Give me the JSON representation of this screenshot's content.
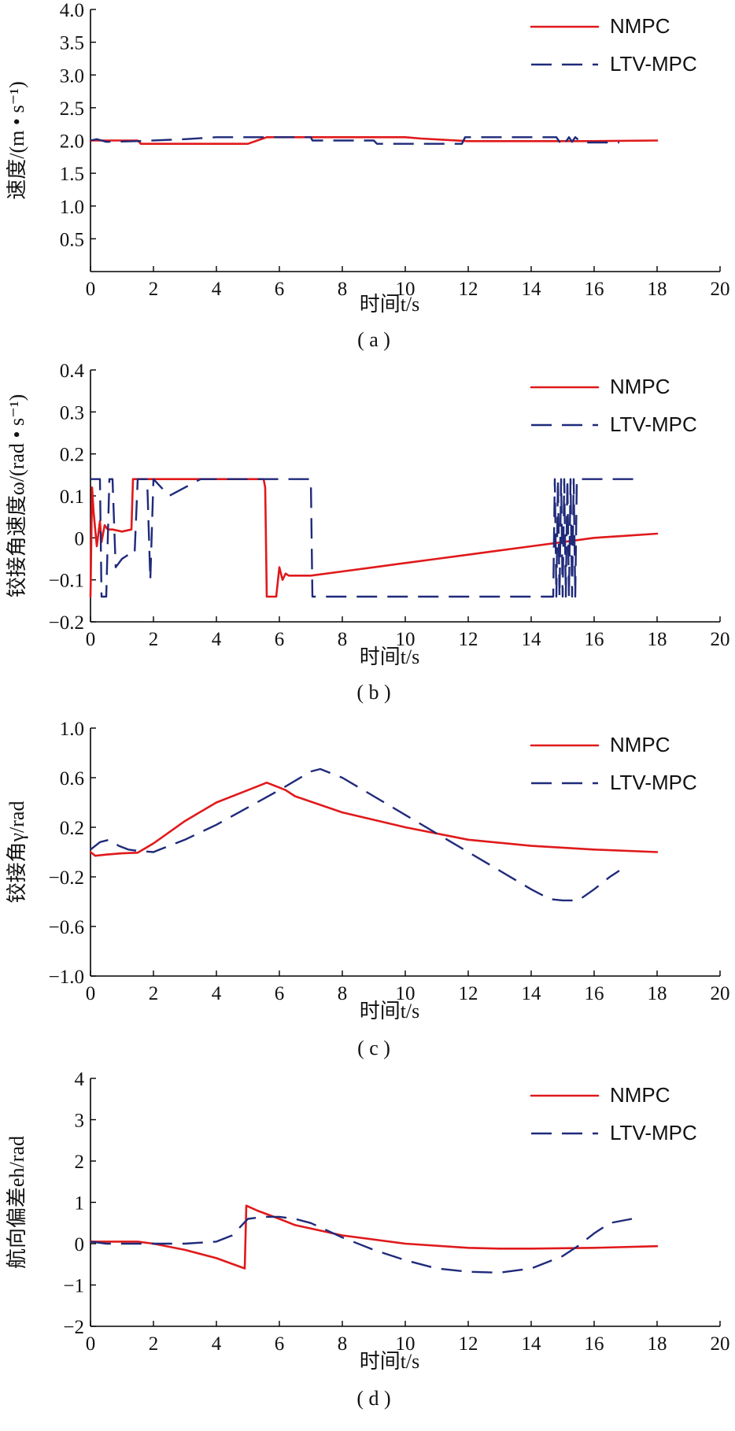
{
  "colors": {
    "nmpc": "#e0191b",
    "ltv": "#1f2a7a",
    "axis": "#000000"
  },
  "chart_data": [
    {
      "type": "line",
      "panel_label": "( a )",
      "xlabel": "时间t/s",
      "ylabel": "速度/(m • s⁻¹)",
      "xlim": [
        0,
        20
      ],
      "ylim": [
        0,
        4.0
      ],
      "xticks": [
        0,
        2,
        4,
        6,
        8,
        10,
        12,
        14,
        16,
        18,
        20
      ],
      "xtick_labels": [
        "0",
        "2",
        "4",
        "6",
        "8",
        "10",
        "12",
        "14",
        "16",
        "18",
        "20"
      ],
      "yticks": [
        0.5,
        1.0,
        1.5,
        2.0,
        2.5,
        3.0,
        3.5,
        4.0
      ],
      "ytick_labels": [
        "0.5",
        "1.0",
        "1.5",
        "2.0",
        "2.5",
        "3.0",
        "3.5",
        "4.0"
      ],
      "legend_position": "top-right",
      "series": [
        {
          "name": "NMPC",
          "style": "solid",
          "x": [
            0,
            1.5,
            1.6,
            5.0,
            5.3,
            5.6,
            10.0,
            10.5,
            12.0,
            14.0,
            16.0,
            18.0
          ],
          "y": [
            2.0,
            2.0,
            1.95,
            1.95,
            2.0,
            2.05,
            2.05,
            2.03,
            1.99,
            1.99,
            1.99,
            2.0
          ]
        },
        {
          "name": "LTV-MPC",
          "style": "dashed",
          "x": [
            0,
            0.2,
            0.5,
            1.5,
            3.0,
            4.0,
            5.5,
            7.0,
            7.05,
            9.0,
            9.1,
            11.8,
            11.9,
            14.8,
            14.9,
            15.0,
            15.1,
            15.2,
            15.3,
            15.4,
            15.6,
            16.8
          ],
          "y": [
            2.0,
            2.02,
            1.98,
            1.99,
            2.02,
            2.05,
            2.05,
            2.05,
            2.0,
            2.0,
            1.95,
            1.95,
            2.05,
            2.05,
            1.98,
            2.05,
            1.98,
            2.05,
            1.98,
            2.05,
            1.97,
            1.97
          ]
        }
      ]
    },
    {
      "type": "line",
      "panel_label": "( b )",
      "xlabel": "时间t/s",
      "ylabel": "铰接角速度ω/(rad • s⁻¹)",
      "xlim": [
        0,
        20
      ],
      "ylim": [
        -0.2,
        0.4
      ],
      "xticks": [
        0,
        2,
        4,
        6,
        8,
        10,
        12,
        14,
        16,
        18,
        20
      ],
      "xtick_labels": [
        "0",
        "2",
        "4",
        "6",
        "8",
        "10",
        "12",
        "14",
        "16",
        "18",
        "20"
      ],
      "yticks": [
        -0.2,
        -0.1,
        0,
        0.1,
        0.2,
        0.3,
        0.4
      ],
      "ytick_labels": [
        "−0.2",
        "−0.1",
        "0",
        "0.1",
        "0.2",
        "0.3",
        "0.4"
      ],
      "legend_position": "top-right",
      "series": [
        {
          "name": "NMPC",
          "style": "solid",
          "x": [
            0,
            0.05,
            0.1,
            0.2,
            0.3,
            0.35,
            0.45,
            0.55,
            0.7,
            1.0,
            1.3,
            1.35,
            1.4,
            5.5,
            5.55,
            5.6,
            5.9,
            6.0,
            6.1,
            6.2,
            6.3,
            7.0,
            8.0,
            9.0,
            10.0,
            11.0,
            12.0,
            13.0,
            14.0,
            15.0,
            16.0,
            17.0,
            18.0
          ],
          "y": [
            -0.14,
            0.12,
            0.06,
            -0.02,
            0.04,
            -0.01,
            0.03,
            0.02,
            0.02,
            0.015,
            0.02,
            0.14,
            0.14,
            0.14,
            0.12,
            -0.14,
            -0.14,
            -0.07,
            -0.1,
            -0.085,
            -0.09,
            -0.09,
            -0.08,
            -0.07,
            -0.06,
            -0.05,
            -0.04,
            -0.03,
            -0.02,
            -0.01,
            0.0,
            0.005,
            0.01
          ]
        },
        {
          "name": "LTV-MPC",
          "style": "dashed",
          "x": [
            0,
            0.2,
            0.3,
            0.35,
            0.5,
            0.6,
            0.7,
            0.8,
            1.0,
            1.2,
            1.4,
            1.5,
            1.8,
            1.9,
            2.0,
            2.5,
            3.0,
            3.5,
            4.0,
            5.0,
            6.0,
            7.0,
            7.05,
            8.0,
            10.0,
            12.0,
            14.0,
            14.5,
            14.7,
            14.75,
            14.8,
            14.85,
            14.9,
            14.95,
            15.0,
            15.05,
            15.1,
            15.15,
            15.2,
            15.25,
            15.3,
            15.35,
            15.4,
            15.45,
            15.5,
            16.0,
            17.3
          ],
          "y": [
            0.14,
            0.14,
            0.14,
            -0.14,
            -0.14,
            0.14,
            0.14,
            -0.07,
            -0.05,
            -0.04,
            -0.04,
            0.14,
            0.14,
            -0.1,
            0.14,
            0.1,
            0.12,
            0.14,
            0.14,
            0.14,
            0.14,
            0.14,
            -0.14,
            -0.14,
            -0.14,
            -0.14,
            -0.14,
            -0.14,
            -0.14,
            0.14,
            -0.14,
            0.14,
            -0.14,
            0.14,
            -0.14,
            0.14,
            -0.14,
            0.14,
            -0.14,
            0.14,
            -0.14,
            0.14,
            -0.14,
            0.14,
            0.14,
            0.14,
            0.14
          ]
        }
      ]
    },
    {
      "type": "line",
      "panel_label": "( c )",
      "xlabel": "时间t/s",
      "ylabel": "铰接角γ/rad",
      "xlim": [
        0,
        20
      ],
      "ylim": [
        -1.0,
        1.0
      ],
      "xticks": [
        0,
        2,
        4,
        6,
        8,
        10,
        12,
        14,
        16,
        18,
        20
      ],
      "xtick_labels": [
        "0",
        "2",
        "4",
        "6",
        "8",
        "10",
        "12",
        "14",
        "16",
        "18",
        "20"
      ],
      "yticks": [
        -1.0,
        -0.6,
        -0.2,
        0.2,
        0.6,
        1.0
      ],
      "ytick_labels": [
        "−1.0",
        "−0.6",
        "−0.2",
        "0.2",
        "0.6",
        "1.0"
      ],
      "legend_position": "top-right",
      "series": [
        {
          "name": "NMPC",
          "style": "solid",
          "x": [
            0,
            0.15,
            0.5,
            1.0,
            1.5,
            2.0,
            3.0,
            4.0,
            5.0,
            5.6,
            6.0,
            6.2,
            6.5,
            8.0,
            10.0,
            12.0,
            14.0,
            16.0,
            18.0
          ],
          "y": [
            0.0,
            -0.03,
            -0.02,
            -0.01,
            -0.005,
            0.07,
            0.25,
            0.4,
            0.5,
            0.56,
            0.52,
            0.5,
            0.45,
            0.32,
            0.2,
            0.1,
            0.05,
            0.02,
            0.0
          ]
        },
        {
          "name": "LTV-MPC",
          "style": "dashed",
          "x": [
            0,
            0.3,
            0.6,
            0.9,
            1.2,
            1.5,
            2.0,
            2.2,
            3.0,
            4.0,
            5.0,
            6.0,
            7.0,
            7.3,
            8.0,
            9.0,
            10.0,
            11.0,
            12.0,
            13.0,
            14.0,
            14.6,
            15.0,
            15.5,
            16.0,
            16.5,
            16.8
          ],
          "y": [
            0.02,
            0.08,
            0.1,
            0.05,
            0.02,
            0.01,
            0.0,
            0.02,
            0.1,
            0.22,
            0.36,
            0.5,
            0.65,
            0.67,
            0.6,
            0.45,
            0.3,
            0.15,
            0.0,
            -0.15,
            -0.3,
            -0.38,
            -0.39,
            -0.39,
            -0.3,
            -0.2,
            -0.15
          ]
        }
      ]
    },
    {
      "type": "line",
      "panel_label": "( d )",
      "xlabel": "时间t/s",
      "ylabel": "航向偏差eh/rad",
      "xlim": [
        0,
        20
      ],
      "ylim": [
        -2,
        4
      ],
      "xticks": [
        0,
        2,
        4,
        6,
        8,
        10,
        12,
        14,
        16,
        18,
        20
      ],
      "xtick_labels": [
        "0",
        "2",
        "4",
        "6",
        "8",
        "10",
        "12",
        "14",
        "16",
        "18",
        "20"
      ],
      "yticks": [
        -2,
        -1,
        0,
        1,
        2,
        3,
        4
      ],
      "ytick_labels": [
        "−2",
        "−1",
        "0",
        "1",
        "2",
        "3",
        "4"
      ],
      "legend_position": "top-right",
      "series": [
        {
          "name": "NMPC",
          "style": "solid",
          "x": [
            0,
            0.5,
            1.0,
            1.5,
            2.0,
            3.0,
            4.0,
            4.9,
            4.95,
            5.3,
            6.0,
            6.5,
            8.0,
            10.0,
            12.0,
            13.0,
            14.0,
            16.0,
            18.0
          ],
          "y": [
            0.05,
            0.05,
            0.05,
            0.05,
            0.0,
            -0.15,
            -0.35,
            -0.6,
            0.92,
            0.8,
            0.6,
            0.45,
            0.2,
            0.0,
            -0.1,
            -0.12,
            -0.12,
            -0.1,
            -0.06
          ]
        },
        {
          "name": "LTV-MPC",
          "style": "dashed",
          "x": [
            0,
            0.5,
            1.0,
            2.0,
            3.0,
            4.0,
            4.5,
            5.0,
            5.5,
            6.0,
            6.5,
            7.0,
            8.0,
            9.0,
            10.0,
            11.0,
            12.0,
            13.0,
            14.0,
            15.0,
            15.5,
            16.0,
            16.5,
            17.2
          ],
          "y": [
            0.05,
            0.0,
            0.0,
            0.0,
            0.0,
            0.05,
            0.2,
            0.6,
            0.65,
            0.65,
            0.6,
            0.5,
            0.15,
            -0.15,
            -0.4,
            -0.6,
            -0.68,
            -0.7,
            -0.6,
            -0.3,
            -0.05,
            0.25,
            0.5,
            0.6
          ]
        }
      ]
    }
  ]
}
